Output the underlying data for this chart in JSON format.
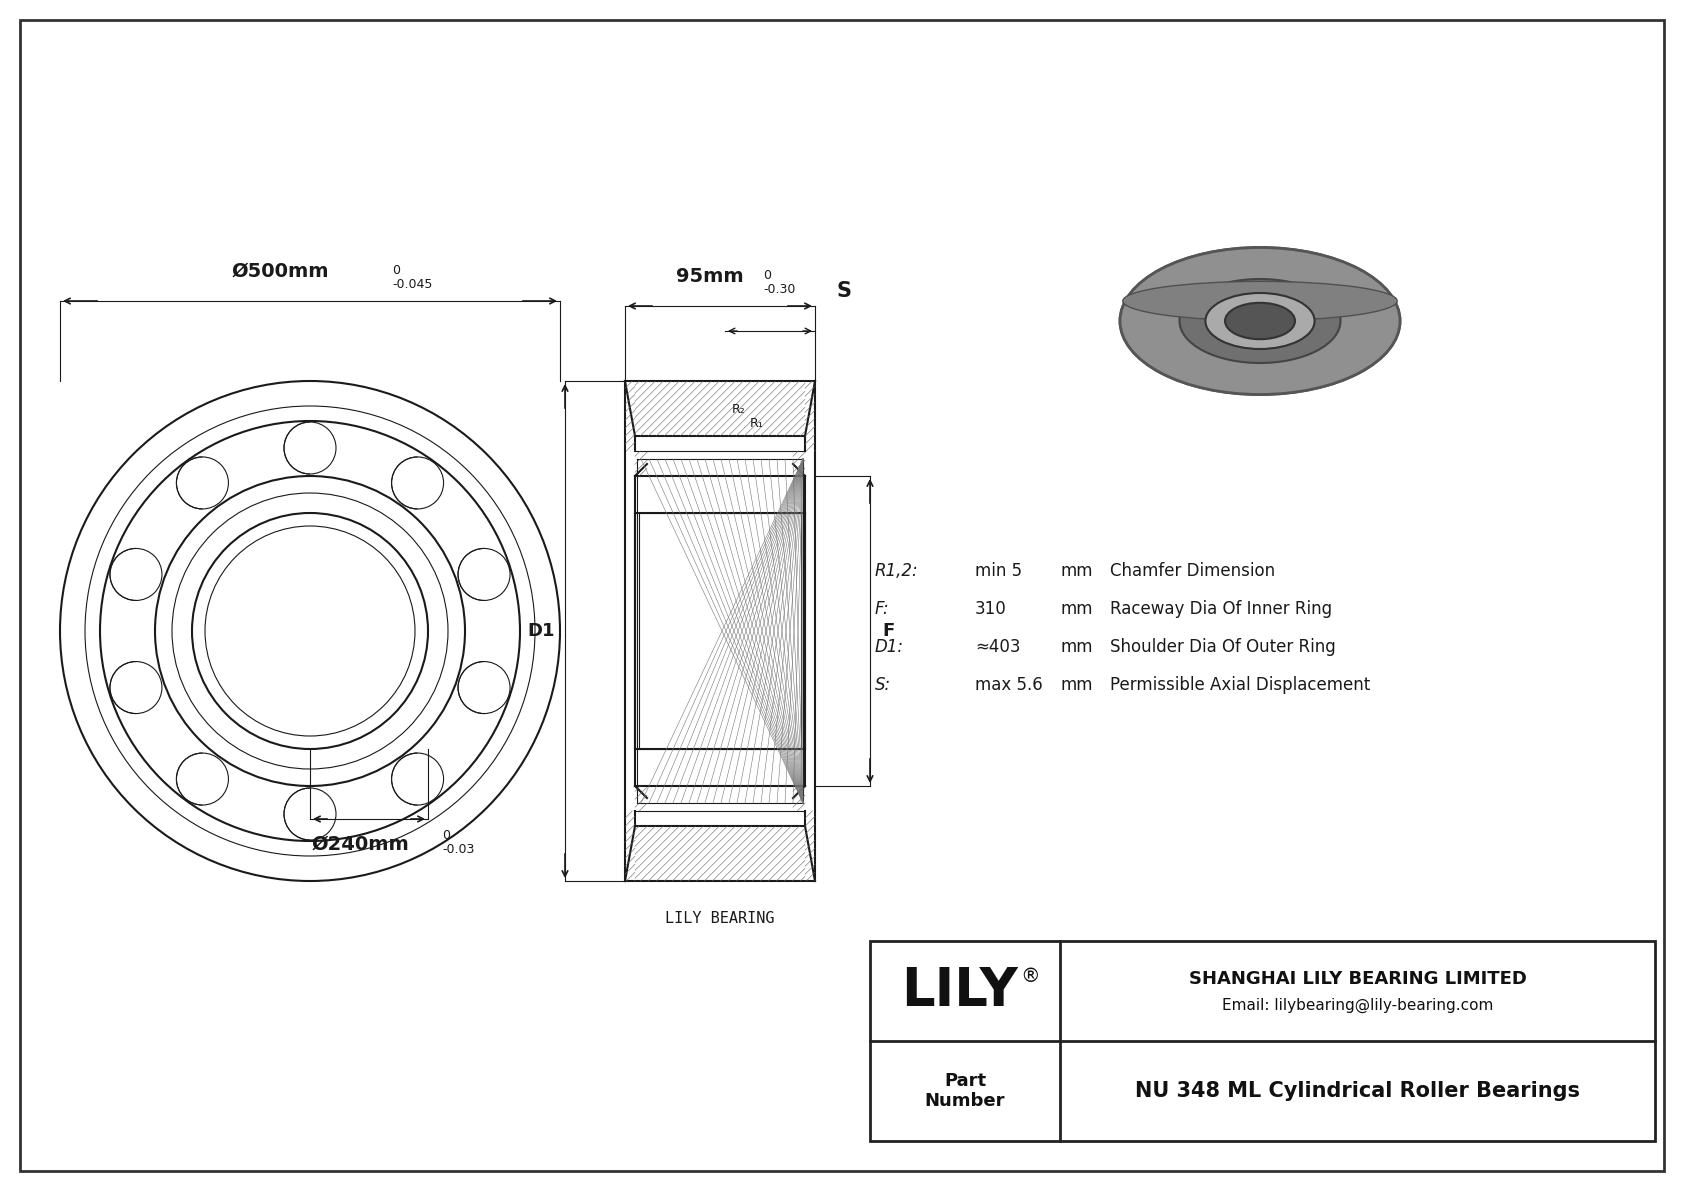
{
  "bg_color": "#ffffff",
  "border_color": "#000000",
  "line_color": "#1a1a1a",
  "title": "NU 348 ML Cylindrical Roller Bearings",
  "company": "SHANGHAI LILY BEARING LIMITED",
  "email": "Email: lilybearing@lily-bearing.com",
  "part_label": "Part\nNumber",
  "lily_logo": "LILY",
  "lily_bearing_label": "LILY BEARING",
  "dim_outer": "Ø500mm",
  "dim_outer_tol_upper": "0",
  "dim_outer_tol_lower": "-0.045",
  "dim_inner": "Ø240mm",
  "dim_inner_tol_upper": "0",
  "dim_inner_tol_lower": "-0.03",
  "dim_width": "95mm",
  "dim_width_tol_upper": "0",
  "dim_width_tol_lower": "-0.30",
  "param_R12": "R1,2:",
  "param_R12_val": "min 5",
  "param_R12_unit": "mm",
  "param_R12_desc": "Chamfer Dimension",
  "param_F": "F:",
  "param_F_val": "310",
  "param_F_unit": "mm",
  "param_F_desc": "Raceway Dia Of Inner Ring",
  "param_D1": "D1:",
  "param_D1_val": "≈403",
  "param_D1_unit": "mm",
  "param_D1_desc": "Shoulder Dia Of Outer Ring",
  "param_S": "S:",
  "param_S_val": "max 5.6",
  "param_S_unit": "mm",
  "param_S_desc": "Permissible Axial Displacement",
  "label_D1": "D1",
  "label_F": "F",
  "label_S": "S",
  "label_R2": "R₂",
  "label_R1": "R₁"
}
